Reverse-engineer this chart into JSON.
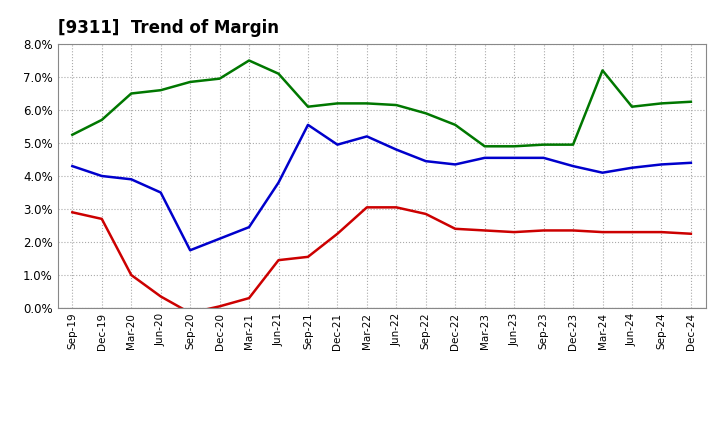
{
  "title": "[9311]  Trend of Margin",
  "x_labels": [
    "Sep-19",
    "Dec-19",
    "Mar-20",
    "Jun-20",
    "Sep-20",
    "Dec-20",
    "Mar-21",
    "Jun-21",
    "Sep-21",
    "Dec-21",
    "Mar-22",
    "Jun-22",
    "Sep-22",
    "Dec-22",
    "Mar-23",
    "Jun-23",
    "Sep-23",
    "Dec-23",
    "Mar-24",
    "Jun-24",
    "Sep-24",
    "Dec-24"
  ],
  "ordinary_income": [
    4.3,
    4.0,
    3.9,
    3.5,
    1.75,
    2.1,
    2.45,
    3.8,
    5.55,
    4.95,
    5.2,
    4.8,
    4.45,
    4.35,
    4.55,
    4.55,
    4.55,
    4.3,
    4.1,
    4.25,
    4.35,
    4.4
  ],
  "net_income": [
    2.9,
    2.7,
    1.0,
    0.35,
    -0.15,
    0.05,
    0.3,
    1.45,
    1.55,
    2.25,
    3.05,
    3.05,
    2.85,
    2.4,
    2.35,
    2.3,
    2.35,
    2.35,
    2.3,
    2.3,
    2.3,
    2.25
  ],
  "operating_cashflow": [
    5.25,
    5.7,
    6.5,
    6.6,
    6.85,
    6.95,
    7.5,
    7.1,
    6.1,
    6.2,
    6.2,
    6.15,
    5.9,
    5.55,
    4.9,
    4.9,
    4.95,
    4.95,
    7.2,
    6.1,
    6.2,
    6.25
  ],
  "ylim": [
    0.0,
    8.0
  ],
  "yticks": [
    0.0,
    1.0,
    2.0,
    3.0,
    4.0,
    5.0,
    6.0,
    7.0,
    8.0
  ],
  "line_colors": {
    "ordinary_income": "#0000CC",
    "net_income": "#CC0000",
    "operating_cashflow": "#007700"
  },
  "background_color": "#FFFFFF",
  "plot_bg_color": "#FFFFFF"
}
